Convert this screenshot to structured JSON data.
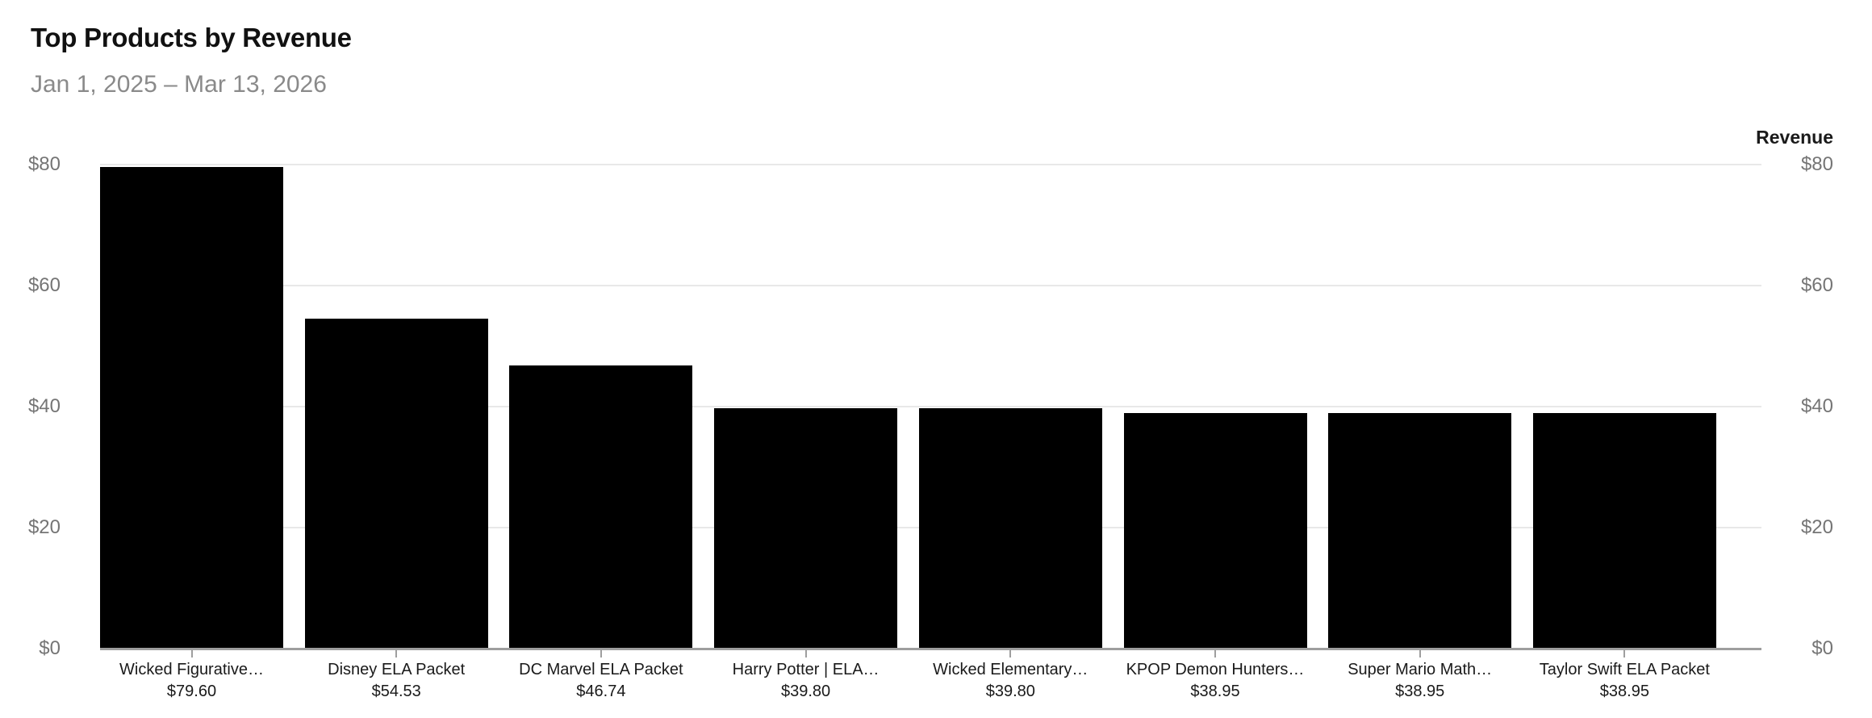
{
  "header": {
    "title": "Top Products by Revenue",
    "date_range": "Jan 1, 2025 – Mar 13, 2026"
  },
  "chart_data": {
    "type": "bar",
    "title": "Top Products by Revenue",
    "subtitle": "Jan 1, 2025 – Mar 13, 2026",
    "categories": [
      "Wicked Figurative…",
      "Disney ELA Packet",
      "DC Marvel ELA Packet",
      "Harry Potter | ELA…",
      "Wicked Elementary…",
      "KPOP Demon Hunters…",
      "Super Mario Math…",
      "Taylor Swift ELA Packet"
    ],
    "values": [
      79.6,
      54.53,
      46.74,
      39.8,
      39.8,
      38.95,
      38.95,
      38.95
    ],
    "value_labels": [
      "$79.60",
      "$54.53",
      "$46.74",
      "$39.80",
      "$39.80",
      "$38.95",
      "$38.95",
      "$38.95"
    ],
    "right_axis_title": "Revenue",
    "ytick_values": [
      0,
      20,
      40,
      60,
      80
    ],
    "ytick_labels": [
      "$0",
      "$20",
      "$40",
      "$60",
      "$80"
    ],
    "ylim": [
      0,
      80
    ],
    "xlabel": "",
    "ylabel": "Revenue",
    "grid": "horizontal-only",
    "legend_position": "none",
    "dual_y_axis": true,
    "bar_color": "#000000"
  },
  "colors": {
    "background": "#ffffff",
    "bar": "#000000",
    "title": "#111111",
    "subtitle": "#8a8a8a",
    "tick_label": "#757575",
    "category_label": "#1a1a1a",
    "gridline": "#e8e8e8",
    "axis_line": "#9e9e9e"
  }
}
